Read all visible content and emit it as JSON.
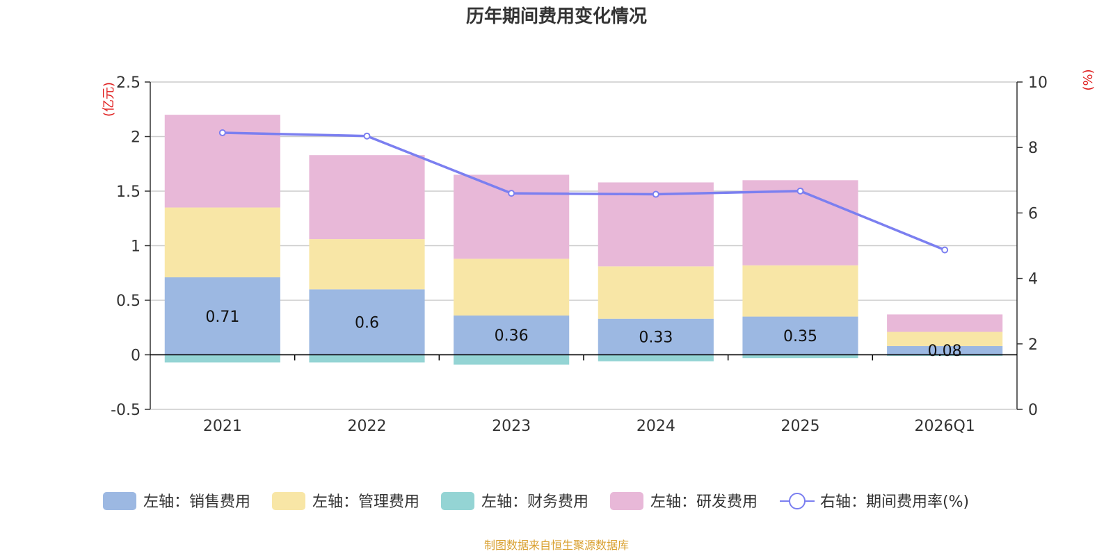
{
  "chart_data": {
    "type": "bar",
    "title": "历年期间费用变化情况",
    "categories": [
      "2021",
      "2022",
      "2023",
      "2024",
      "2025",
      "2026Q1"
    ],
    "left_axis": {
      "unit": "(亿元)",
      "ticks": [
        "2.5",
        "2",
        "1.5",
        "1",
        "0.5",
        "0",
        "-0.5"
      ],
      "ylim": [
        -0.5,
        2.5
      ]
    },
    "right_axis": {
      "unit": "(%)",
      "ticks": [
        "10",
        "8",
        "6",
        "4",
        "2",
        "0"
      ],
      "ylim": [
        0,
        10
      ]
    },
    "series": [
      {
        "name": "左轴：销售费用",
        "type": "bar",
        "axis": "left",
        "color": "#9cb8e2",
        "values": [
          0.71,
          0.6,
          0.36,
          0.33,
          0.35,
          0.08
        ],
        "labels": [
          "0.71",
          "0.6",
          "0.36",
          "0.33",
          "0.35",
          "0.08"
        ]
      },
      {
        "name": "左轴：管理费用",
        "type": "bar",
        "axis": "left",
        "color": "#f8e6a6",
        "values": [
          0.64,
          0.46,
          0.52,
          0.48,
          0.47,
          0.13
        ]
      },
      {
        "name": "左轴：财务费用",
        "type": "bar",
        "axis": "left",
        "color": "#94d4d4",
        "values": [
          -0.07,
          -0.07,
          -0.09,
          -0.06,
          -0.03,
          -0.01
        ]
      },
      {
        "name": "左轴：研发费用",
        "type": "bar",
        "axis": "left",
        "color": "#e8b8d8",
        "values": [
          0.85,
          0.77,
          0.77,
          0.77,
          0.78,
          0.16
        ]
      },
      {
        "name": "右轴：期间费用率(%)",
        "type": "line",
        "axis": "right",
        "color": "#7b7ff0",
        "values": [
          8.45,
          8.35,
          6.6,
          6.57,
          6.67,
          4.87
        ]
      }
    ],
    "unit_color": "#e02020",
    "source": "制图数据来自恒生聚源数据库",
    "source_color": "#d9a030"
  }
}
